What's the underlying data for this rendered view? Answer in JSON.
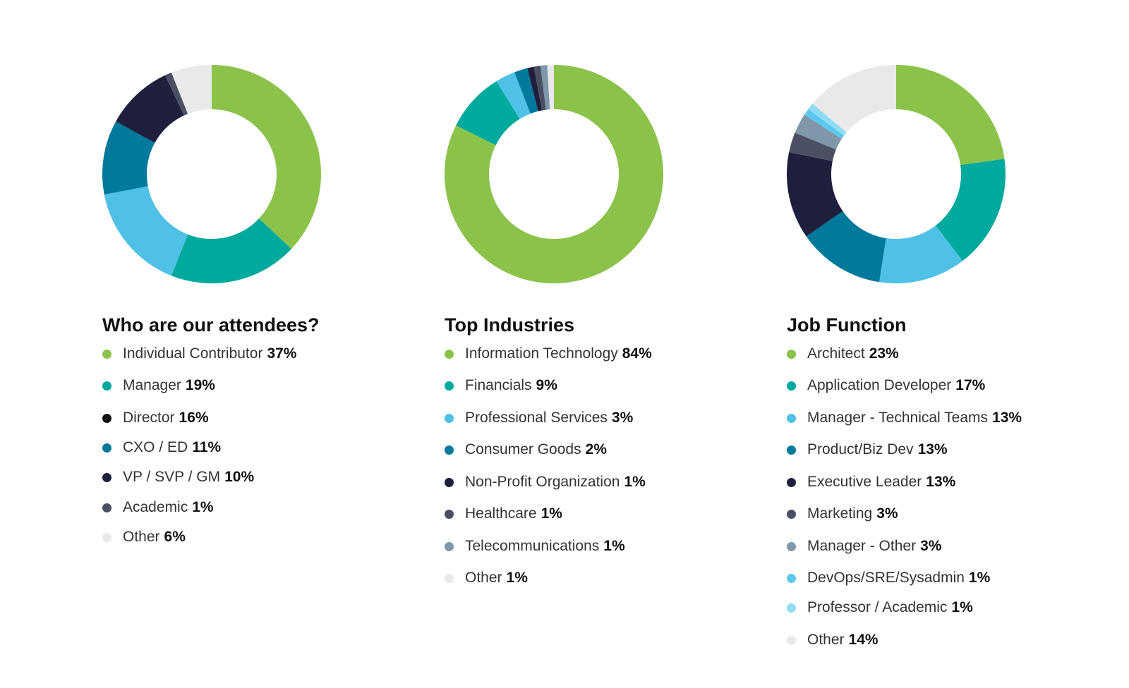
{
  "chart_data": [
    {
      "type": "pie",
      "title": "Who are our attendees?",
      "categories": [
        "Individual Contributor",
        "Manager",
        "Director",
        "CXO / ED",
        "VP / SVP / GM",
        "Academic",
        "Other"
      ],
      "values": [
        37,
        19,
        16,
        11,
        10,
        1,
        6
      ],
      "value_labels": [
        "37%",
        "19%",
        "16%",
        "11%",
        "10%",
        "1%",
        "6%"
      ],
      "colors": [
        "#8bc34a",
        "#00a99d",
        "#4fc0e6",
        "#00799c",
        "#1d1f3d",
        "#4a4f63",
        "#e8e9eb"
      ],
      "legend_colors": [
        "#8bc34a",
        "#00a99d",
        "#111111",
        "#00799c",
        "#1d1f3d",
        "#4a4f63",
        "#e8e9eb"
      ],
      "donut": true,
      "legend": "below"
    },
    {
      "type": "pie",
      "title": "Top Industries",
      "categories": [
        "Information Technology",
        "Financials",
        "Professional Services",
        "Consumer Goods",
        "Non-Profit Organization",
        "Healthcare",
        "Telecommunications",
        "Other"
      ],
      "values": [
        84,
        9,
        3,
        2,
        1,
        1,
        1,
        1
      ],
      "value_labels": [
        "84%",
        "9%",
        "3%",
        "2%",
        "1%",
        "1%",
        "1%",
        "1%"
      ],
      "colors": [
        "#8bc34a",
        "#00a99d",
        "#4fc0e6",
        "#00799c",
        "#1d1f3d",
        "#4a4f63",
        "#7f97a8",
        "#e8e9eb"
      ],
      "legend_colors": [
        "#8bc34a",
        "#00a99d",
        "#4fc0e6",
        "#00799c",
        "#1d1f3d",
        "#4a4f63",
        "#7f97a8",
        "#e8e9eb"
      ],
      "donut": true,
      "legend": "below"
    },
    {
      "type": "pie",
      "title": "Job Function",
      "categories": [
        "Architect",
        "Application Developer",
        "Manager - Technical Teams",
        "Product/Biz Dev",
        "Executive Leader",
        "Marketing",
        "Manager - Other",
        "DevOps/SRE/Sysadmin",
        "Professor / Academic",
        "Other"
      ],
      "values": [
        23,
        17,
        13,
        13,
        13,
        3,
        3,
        1,
        1,
        14
      ],
      "value_labels": [
        "23%",
        "17%",
        "13%",
        "13%",
        "13%",
        "3%",
        "3%",
        "1%",
        "1%",
        "14%"
      ],
      "colors": [
        "#8bc34a",
        "#00a99d",
        "#4fc0e6",
        "#00799c",
        "#1d1f3d",
        "#4a4f63",
        "#7f97a8",
        "#5bc8ee",
        "#8fdcf5",
        "#e8e9eb"
      ],
      "legend_colors": [
        "#8bc34a",
        "#00a99d",
        "#4fc0e6",
        "#00799c",
        "#1d1f3d",
        "#4a4f63",
        "#7f97a8",
        "#5bc8ee",
        "#8fdcf5",
        "#e8e9eb"
      ],
      "donut": true,
      "legend": "below"
    }
  ]
}
